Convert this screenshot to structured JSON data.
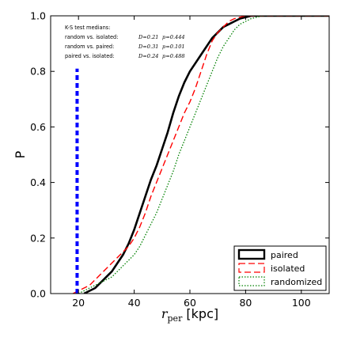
{
  "chart_data": {
    "type": "line",
    "xlabel": "r_per [kpc]",
    "xlabel_main": "r",
    "xlabel_sub": "per",
    "xlabel_unit": " [kpc]",
    "ylabel": "P",
    "xlim": [
      10,
      110
    ],
    "ylim": [
      0,
      1.0
    ],
    "xticks": [
      20,
      40,
      60,
      80,
      100
    ],
    "yticks": [
      0.0,
      0.2,
      0.4,
      0.6,
      0.8,
      1.0
    ],
    "xtick_labels": [
      "20",
      "40",
      "60",
      "80",
      "100"
    ],
    "ytick_labels": [
      "0.0",
      "0.2",
      "0.4",
      "0.6",
      "0.8",
      "1.0"
    ],
    "grid": false,
    "legend_position": "bottom-right",
    "vertical_line": {
      "x": 19.5,
      "y_range": [
        0,
        0.81
      ],
      "color": "#0000ff",
      "style": "dashed"
    },
    "series": [
      {
        "name": "paired",
        "color": "#000000",
        "style": "solid",
        "x": [
          22,
          24,
          26,
          28,
          30,
          32,
          34,
          36,
          38,
          40,
          42,
          44,
          46,
          48,
          50,
          52,
          54,
          56,
          58,
          60,
          62,
          64,
          66,
          68,
          70,
          72,
          74,
          76,
          78,
          80,
          82,
          84,
          86,
          88,
          90,
          95,
          100,
          110
        ],
        "y": [
          0.0,
          0.01,
          0.02,
          0.04,
          0.06,
          0.08,
          0.11,
          0.14,
          0.18,
          0.23,
          0.29,
          0.35,
          0.41,
          0.46,
          0.52,
          0.58,
          0.65,
          0.71,
          0.76,
          0.8,
          0.83,
          0.86,
          0.89,
          0.92,
          0.94,
          0.96,
          0.97,
          0.98,
          0.99,
          0.995,
          1.0,
          1.0,
          1.0,
          1.0,
          1.0,
          1.0,
          1.0,
          1.0
        ]
      },
      {
        "name": "isolated",
        "color": "#ff0000",
        "style": "dashed",
        "x": [
          18,
          20,
          22,
          24,
          26,
          28,
          30,
          32,
          34,
          36,
          38,
          40,
          42,
          44,
          46,
          48,
          50,
          52,
          54,
          56,
          58,
          60,
          62,
          64,
          66,
          68,
          70,
          72,
          74,
          76,
          78,
          80,
          84,
          88,
          95,
          110
        ],
        "y": [
          0.0,
          0.01,
          0.02,
          0.03,
          0.05,
          0.07,
          0.09,
          0.11,
          0.13,
          0.15,
          0.17,
          0.2,
          0.24,
          0.29,
          0.35,
          0.4,
          0.45,
          0.5,
          0.55,
          0.6,
          0.65,
          0.69,
          0.74,
          0.8,
          0.86,
          0.91,
          0.94,
          0.96,
          0.98,
          0.99,
          0.995,
          1.0,
          1.0,
          1.0,
          1.0,
          1.0
        ]
      },
      {
        "name": "randomized",
        "color": "#008000",
        "style": "dotted",
        "x": [
          20,
          22,
          24,
          26,
          28,
          30,
          32,
          34,
          36,
          38,
          40,
          42,
          44,
          46,
          48,
          50,
          52,
          54,
          56,
          58,
          60,
          62,
          64,
          66,
          68,
          70,
          72,
          74,
          76,
          78,
          80,
          82,
          84,
          86,
          90,
          95,
          110
        ],
        "y": [
          0.0,
          0.01,
          0.02,
          0.03,
          0.04,
          0.05,
          0.06,
          0.08,
          0.1,
          0.12,
          0.14,
          0.17,
          0.21,
          0.25,
          0.29,
          0.34,
          0.39,
          0.44,
          0.5,
          0.55,
          0.6,
          0.65,
          0.7,
          0.75,
          0.8,
          0.85,
          0.89,
          0.92,
          0.95,
          0.97,
          0.98,
          0.99,
          0.995,
          1.0,
          1.0,
          1.0,
          1.0
        ]
      }
    ],
    "ks_annotation": {
      "title": "K-S test medians:",
      "rows": [
        {
          "label": "random vs. isolated:",
          "D": "D=0.21",
          "p": "p=0.444"
        },
        {
          "label": "random vs. paired:",
          "D": "D=0.31",
          "p": "p=0.101"
        },
        {
          "label": "paired vs. isolated:",
          "D": "D=0.24",
          "p": "p=0.488"
        }
      ]
    }
  }
}
